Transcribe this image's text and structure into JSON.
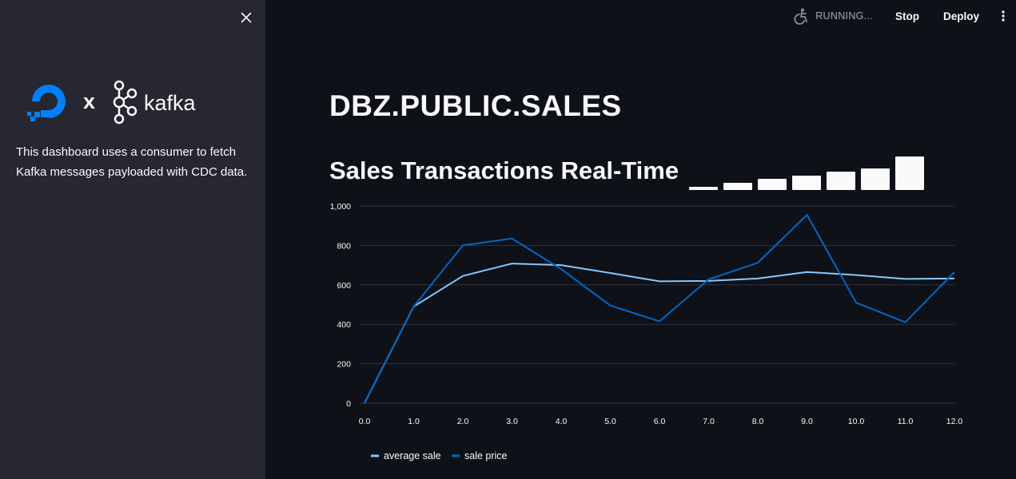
{
  "sidebar": {
    "logo_x": "x",
    "logo_kafka": "kafka",
    "description": "This dashboard uses a consumer to fetch Kafka messages payloaded with CDC data."
  },
  "toolbar": {
    "status_text": "RUNNING...",
    "stop_label": "Stop",
    "deploy_label": "Deploy"
  },
  "page": {
    "title": "DBZ.PUBLIC.SALES",
    "chart_title": "Sales Transactions Real-Time"
  },
  "running_indicator": {
    "bar_levels": [
      0.05,
      0.2,
      0.32,
      0.42,
      0.52,
      0.62,
      0.95
    ]
  },
  "colors": {
    "average_sale": "#83c9ff",
    "sale_price": "#0068c9",
    "background": "#0e1117",
    "sidebar": "#262730"
  },
  "chart_data": {
    "type": "line",
    "x": [
      0,
      1,
      2,
      3,
      4,
      5,
      6,
      7,
      8,
      9,
      10,
      11,
      12
    ],
    "x_tick_labels": [
      "0.0",
      "1.0",
      "2.0",
      "3.0",
      "4.0",
      "5.0",
      "6.0",
      "7.0",
      "8.0",
      "9.0",
      "10.0",
      "11.0",
      "12.0"
    ],
    "y_tick_labels": [
      "0",
      "200",
      "400",
      "600",
      "800",
      "1,000"
    ],
    "ylim": [
      0,
      1000
    ],
    "xlim": [
      0,
      12
    ],
    "grid": "horizontal",
    "legend": "bottom-left",
    "series": [
      {
        "name": "average sale",
        "color": "#83c9ff",
        "values": [
          0,
          490,
          645,
          708,
          700,
          660,
          618,
          620,
          632,
          665,
          650,
          630,
          632
        ]
      },
      {
        "name": "sale price",
        "color": "#0068c9",
        "values": [
          0,
          490,
          800,
          835,
          680,
          495,
          415,
          628,
          712,
          955,
          510,
          410,
          665
        ]
      }
    ]
  }
}
